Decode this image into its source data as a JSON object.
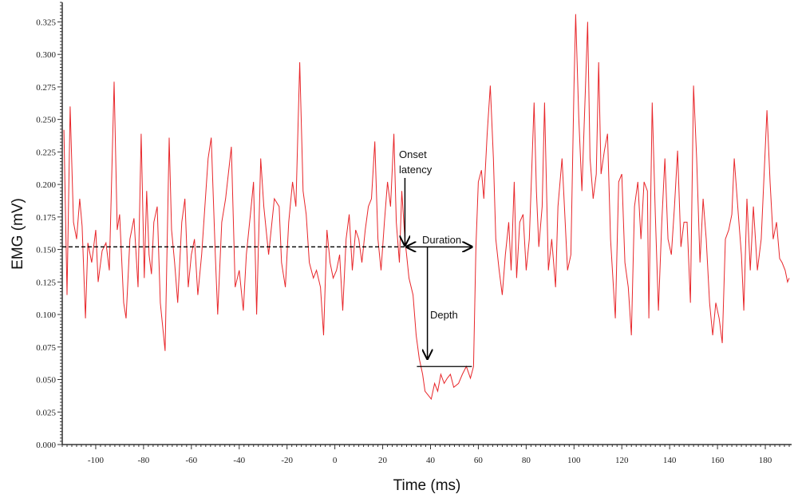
{
  "chart_data": {
    "type": "line",
    "title": "",
    "xlabel": "Time (ms)",
    "ylabel": "EMG (mV)",
    "xlim": [
      -114,
      191
    ],
    "ylim": [
      0,
      0.34
    ],
    "x_ticks": [
      -100,
      -80,
      -60,
      -40,
      -20,
      0,
      20,
      40,
      60,
      80,
      100,
      120,
      140,
      160,
      180
    ],
    "y_ticks": [
      "0.000",
      "0.025",
      "0.050",
      "0.075",
      "0.100",
      "0.125",
      "0.150",
      "0.175",
      "0.200",
      "0.225",
      "0.250",
      "0.275",
      "0.300",
      "0.325"
    ],
    "grid": false,
    "line_color": "#e8262a",
    "series": [
      {
        "x": [
          -113.3,
          -112,
          -110.7,
          -109.3,
          -108,
          -106.7,
          -105.7,
          -104.3,
          -103.3,
          -101.7,
          -100,
          -99,
          -97.3,
          -95.7,
          -94.3,
          -92.3,
          -91,
          -90,
          -88.3,
          -87.3,
          -85.7,
          -84,
          -82.3,
          -81,
          -79.7,
          -78.7,
          -77.7,
          -76.7,
          -75.7,
          -74.3,
          -73,
          -71,
          -69.3,
          -68.3,
          -67,
          -65.7,
          -64,
          -62.7,
          -61.3,
          -60,
          -58.7,
          -57.3,
          -55.7,
          -53,
          -51.7,
          -50,
          -49,
          -47.3,
          -45.7,
          -43.3,
          -41.7,
          -40,
          -38.3,
          -37,
          -35.3,
          -34,
          -32.7,
          -31,
          -29.7,
          -27.7,
          -25.3,
          -23.3,
          -22.3,
          -20.7,
          -19.3,
          -17.7,
          -16.3,
          -14.7,
          -13.3,
          -12,
          -10.7,
          -9,
          -7.7,
          -6,
          -4.7,
          -3.3,
          -2,
          -0.7,
          0.7,
          2,
          3.3,
          4.7,
          6,
          7.3,
          8.7,
          10,
          11.3,
          12.7,
          14,
          15.3,
          16.7,
          18,
          19.3,
          20.7,
          22,
          23.3,
          24.7,
          25.7,
          27,
          28,
          29.3,
          30,
          31,
          32.7,
          34,
          35.3,
          36.7,
          37.7,
          39,
          40.3,
          41.7,
          43,
          44.3,
          45.7,
          47,
          48.3,
          49.7,
          51.7,
          53.3,
          55,
          56.7,
          58,
          59,
          60,
          61.3,
          62.3,
          63.7,
          65,
          66.3,
          67.3,
          68.7,
          70,
          71.3,
          72.7,
          73.7,
          75,
          76,
          77.3,
          78.7,
          80,
          81.3,
          83.3,
          84.3,
          85.3,
          86.7,
          87.7,
          89.3,
          90.7,
          92.3,
          93.3,
          95,
          96,
          97.3,
          98.7,
          100,
          100.7,
          102,
          103.3,
          104.7,
          105.7,
          106.7,
          108,
          109.3,
          110.3,
          111.3,
          112.7,
          114,
          115.3,
          116.7,
          117.3,
          118.7,
          120,
          121.3,
          122.7,
          124,
          125.3,
          126.7,
          128,
          129.3,
          130.7,
          131.3,
          132.7,
          134,
          135.3,
          136.7,
          138,
          139.3,
          140.7,
          142,
          143.3,
          144.7,
          146,
          147.3,
          148.7,
          150,
          151.3,
          152.7,
          154,
          155.3,
          156.7,
          158,
          159.3,
          160.7,
          162,
          163.3,
          164.7,
          166,
          167,
          168.7,
          170,
          171,
          172.3,
          173.7,
          175,
          176.7,
          178.3,
          180.7,
          182,
          183.3,
          184.7,
          186,
          187,
          188.3,
          189.3,
          190
        ],
        "y": [
          0.242,
          0.115,
          0.26,
          0.171,
          0.158,
          0.189,
          0.168,
          0.097,
          0.155,
          0.14,
          0.165,
          0.125,
          0.149,
          0.155,
          0.134,
          0.279,
          0.165,
          0.177,
          0.109,
          0.097,
          0.158,
          0.174,
          0.121,
          0.239,
          0.128,
          0.195,
          0.146,
          0.131,
          0.171,
          0.183,
          0.109,
          0.072,
          0.236,
          0.165,
          0.14,
          0.109,
          0.171,
          0.189,
          0.121,
          0.146,
          0.158,
          0.115,
          0.146,
          0.22,
          0.236,
          0.146,
          0.1,
          0.171,
          0.189,
          0.229,
          0.121,
          0.134,
          0.103,
          0.146,
          0.177,
          0.202,
          0.1,
          0.22,
          0.183,
          0.146,
          0.189,
          0.183,
          0.14,
          0.121,
          0.171,
          0.202,
          0.183,
          0.294,
          0.195,
          0.177,
          0.14,
          0.128,
          0.134,
          0.121,
          0.084,
          0.165,
          0.14,
          0.128,
          0.134,
          0.146,
          0.103,
          0.158,
          0.177,
          0.134,
          0.165,
          0.158,
          0.14,
          0.165,
          0.183,
          0.189,
          0.233,
          0.158,
          0.134,
          0.171,
          0.202,
          0.183,
          0.239,
          0.171,
          0.14,
          0.195,
          0.158,
          0.146,
          0.128,
          0.115,
          0.084,
          0.066,
          0.054,
          0.041,
          0.038,
          0.035,
          0.047,
          0.041,
          0.054,
          0.047,
          0.051,
          0.054,
          0.044,
          0.047,
          0.054,
          0.06,
          0.051,
          0.06,
          0.152,
          0.202,
          0.211,
          0.189,
          0.239,
          0.276,
          0.22,
          0.158,
          0.134,
          0.115,
          0.146,
          0.171,
          0.134,
          0.202,
          0.128,
          0.171,
          0.177,
          0.134,
          0.158,
          0.263,
          0.195,
          0.152,
          0.183,
          0.263,
          0.134,
          0.158,
          0.121,
          0.183,
          0.22,
          0.183,
          0.134,
          0.146,
          0.276,
          0.331,
          0.251,
          0.195,
          0.27,
          0.325,
          0.22,
          0.189,
          0.208,
          0.294,
          0.208,
          0.226,
          0.239,
          0.158,
          0.115,
          0.097,
          0.202,
          0.208,
          0.14,
          0.121,
          0.084,
          0.183,
          0.202,
          0.158,
          0.202,
          0.195,
          0.097,
          0.263,
          0.177,
          0.103,
          0.171,
          0.22,
          0.158,
          0.146,
          0.183,
          0.226,
          0.152,
          0.171,
          0.171,
          0.109,
          0.276,
          0.22,
          0.14,
          0.189,
          0.158,
          0.109,
          0.084,
          0.109,
          0.097,
          0.078,
          0.158,
          0.165,
          0.177,
          0.22,
          0.177,
          0.146,
          0.103,
          0.189,
          0.134,
          0.183,
          0.134,
          0.158,
          0.257,
          0.202,
          0.158,
          0.171,
          0.143,
          0.14,
          0.134,
          0.125,
          0.128
        ]
      }
    ],
    "annotations": {
      "baseline": {
        "y": 0.152,
        "x_from": -114,
        "x_to": 30,
        "style": "dashed"
      },
      "onset": {
        "label_line1": "Onset",
        "label_line2": "latency",
        "x": 29.3,
        "y_from": 0.205,
        "y_to": 0.152
      },
      "duration": {
        "label": "Duration",
        "x_from": 30,
        "x_to": 57.3,
        "y": 0.152
      },
      "depth": {
        "label": "Depth",
        "x": 38.7,
        "y_from": 0.152,
        "y_to": 0.066
      },
      "trough_line": {
        "y": 0.06,
        "x_from": 34.3,
        "x_to": 57.3
      }
    }
  }
}
